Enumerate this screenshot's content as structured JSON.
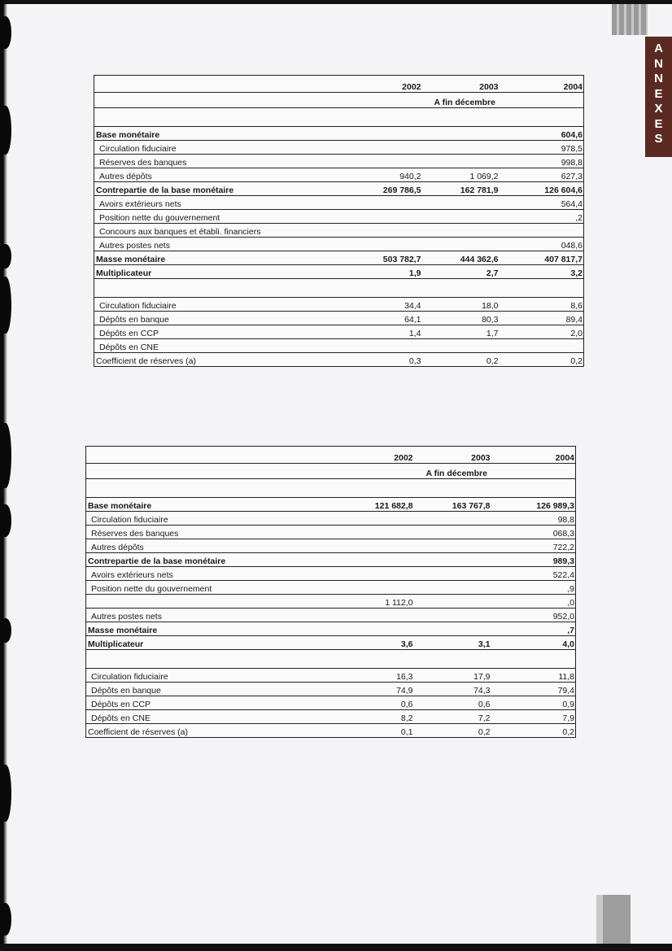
{
  "side_tab": {
    "letters": [
      "A",
      "N",
      "N",
      "E",
      "X",
      "E",
      "S"
    ],
    "color": "#5a2a22"
  },
  "tables": [
    {
      "years": [
        "2002",
        "2003",
        "2004"
      ],
      "subheader": "A fin décembre",
      "rows": [
        {
          "label": "",
          "values": [
            "",
            "",
            ""
          ],
          "blank": true
        },
        {
          "label": "Base monétaire",
          "bold": true,
          "values": [
            "",
            "",
            "604,6"
          ]
        },
        {
          "label": "Circulation fiduciaire",
          "indent": true,
          "values": [
            "",
            "",
            "978,5"
          ]
        },
        {
          "label": "Réserves des banques",
          "indent": true,
          "values": [
            "",
            "",
            "998,8"
          ]
        },
        {
          "label": "Autres dépôts",
          "indent": true,
          "values": [
            "940,2",
            "1 069,2",
            "627,3"
          ]
        },
        {
          "label": "Contrepartie de la base monétaire",
          "bold": true,
          "values": [
            "269 786,5",
            "162 781,9",
            "126 604,6"
          ]
        },
        {
          "label": "Avoirs extérieurs nets",
          "indent": true,
          "values": [
            "",
            "",
            "564,4"
          ]
        },
        {
          "label": "Position nette du gouvernement",
          "indent": true,
          "values": [
            "",
            "",
            ",2"
          ]
        },
        {
          "label": "Concours aux banques et établi. financiers",
          "indent": true,
          "values": [
            "",
            "",
            ""
          ]
        },
        {
          "label": "Autres postes nets",
          "indent": true,
          "values": [
            "",
            "",
            "048,6"
          ]
        },
        {
          "label": "Masse monétaire",
          "bold": true,
          "values": [
            "503 782,7",
            "444 362,6",
            "407 817,7"
          ]
        },
        {
          "label": "Multiplicateur",
          "bold": true,
          "values": [
            "1,9",
            "2,7",
            "3,2"
          ]
        },
        {
          "label": "",
          "values": [
            "",
            "",
            ""
          ],
          "blank": true
        },
        {
          "label": "Circulation fiduciaire",
          "indent": true,
          "values": [
            "34,4",
            "18,0",
            "8,6"
          ]
        },
        {
          "label": "Dépôts en banque",
          "indent": true,
          "values": [
            "64,1",
            "80,3",
            "89,4"
          ]
        },
        {
          "label": "Dépôts en CCP",
          "indent": true,
          "values": [
            "1,4",
            "1,7",
            "2,0"
          ]
        },
        {
          "label": "Dépôts en CNE",
          "indent": true,
          "values": [
            "",
            "",
            ""
          ]
        },
        {
          "label": "Coefficient de réserves (a)",
          "values": [
            "0,3",
            "0,2",
            "0,2"
          ]
        }
      ]
    },
    {
      "years": [
        "2002",
        "2003",
        "2004"
      ],
      "subheader": "A fin décembre",
      "rows": [
        {
          "label": "",
          "values": [
            "",
            "",
            ""
          ],
          "blank": true
        },
        {
          "label": "Base monétaire",
          "bold": true,
          "values": [
            "121 682,8",
            "163 767,8",
            "126 989,3"
          ]
        },
        {
          "label": "Circulation fiduciaire",
          "indent": true,
          "values": [
            "",
            "",
            "98,8"
          ]
        },
        {
          "label": "Réserves des banques",
          "indent": true,
          "values": [
            "",
            "",
            "068,3"
          ]
        },
        {
          "label": "Autres dépôts",
          "indent": true,
          "values": [
            "",
            "",
            "722,2"
          ]
        },
        {
          "label": "Contrepartie de la base monétaire",
          "bold": true,
          "values": [
            "",
            "",
            "989,3"
          ]
        },
        {
          "label": "Avoirs extérieurs nets",
          "indent": true,
          "values": [
            "",
            "",
            "522,4"
          ]
        },
        {
          "label": "Position nette du gouvernement",
          "indent": true,
          "values": [
            "",
            "",
            ",9"
          ]
        },
        {
          "label": "",
          "values": [
            "1 112,0",
            "",
            ",0"
          ]
        },
        {
          "label": "Autres postes nets",
          "indent": true,
          "values": [
            "",
            "",
            "952,0"
          ]
        },
        {
          "label": "Masse monétaire",
          "bold": true,
          "values": [
            "",
            "",
            ",7"
          ]
        },
        {
          "label": "Multiplicateur",
          "bold": true,
          "values": [
            "3,6",
            "3,1",
            "4,0"
          ]
        },
        {
          "label": "",
          "values": [
            "",
            "",
            ""
          ],
          "blank": true
        },
        {
          "label": "Circulation fiduciaire",
          "indent": true,
          "values": [
            "16,3",
            "17,9",
            "11,8"
          ]
        },
        {
          "label": "Dépôts en banque",
          "indent": true,
          "values": [
            "74,9",
            "74,3",
            "79,4"
          ]
        },
        {
          "label": "Dépôts en CCP",
          "indent": true,
          "values": [
            "0,6",
            "0,6",
            "0,9"
          ]
        },
        {
          "label": "Dépôts en CNE",
          "indent": true,
          "values": [
            "8,2",
            "7,2",
            "7,9"
          ]
        },
        {
          "label": "Coefficient de réserves (a)",
          "values": [
            "0,1",
            "0,2",
            "0,2"
          ]
        }
      ]
    }
  ]
}
